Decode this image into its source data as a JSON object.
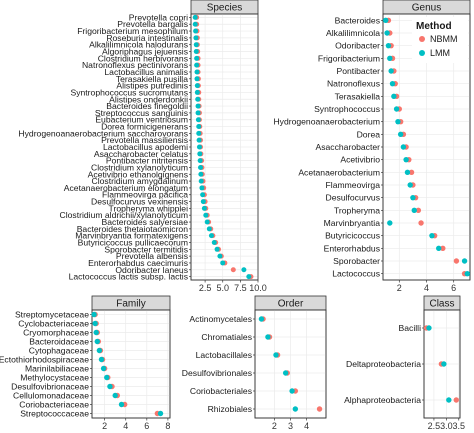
{
  "colors": {
    "NBMM": "#F8766D",
    "LMM": "#00BFC4"
  },
  "legend": {
    "title": "Method",
    "items": [
      "NBMM",
      "LMM"
    ],
    "placement": "top-right"
  },
  "chart_data": [
    {
      "type": "scatter",
      "title": "Species",
      "xlim": [
        0.5,
        10
      ],
      "xticks": [
        2.5,
        5.0,
        7.5,
        10.0
      ],
      "xtick_labels": [
        "2.5",
        "5.0",
        "7.5",
        "10.0"
      ],
      "categories": [
        "Prevotella copri",
        "Prevotella bargalis",
        "Frigoribacterium mesophilum",
        "Roseburia intestinalis",
        "Alkalilimnicola halodurans",
        "Algoriphagus jejuensis",
        "Clostridium herbivorans",
        "Natronoflexus pectinivorans",
        "Lactobacillus animalis",
        "Terasakiella pusilla",
        "Alistipes putredinis",
        "Syntrophococcus sucromutans",
        "Alistipes onderdonkii",
        "Bacteroides finegoldii",
        "Streptococcus sanguinis",
        "Eubacterium ventriosum",
        "Dorea formicigenerans",
        "Hydrogenoanaerobacterium saccharovorans",
        "Prevotella massiliensis",
        "Lactobacillus apodemi",
        "Asaccharobacter celatus",
        "Pontibacter nitritensis",
        "Clostridium xylanolyticum",
        "Acetivibrio ethanolgignens",
        "Clostridium amygdalinum",
        "Acetanaerobacterium elongatum",
        "Flammeovirga pacifica",
        "Desulfocurvus vexinensis",
        "Tropheryma whipplei",
        "Clostridium aldrichii/xylanolyticum",
        "Bacteroides salyersiae",
        "Bacteroides thetaiotaomicron",
        "Marvinbryantia formatexigens",
        "Butyricicoccus pullicaecorum",
        "Sporobacter termitidis",
        "Prevotella albensis",
        "Enterorhabdus caecimuris",
        "Odoribacter laneus",
        "Lactococcus lactis subsp. lactis"
      ],
      "series": [
        {
          "name": "NBMM",
          "values": [
            1.3,
            1.3,
            1.35,
            1.4,
            1.4,
            1.45,
            1.5,
            1.5,
            1.5,
            1.55,
            1.55,
            1.6,
            1.6,
            1.65,
            1.7,
            1.7,
            1.75,
            1.8,
            1.85,
            1.85,
            1.9,
            2.0,
            2.05,
            2.1,
            2.2,
            2.3,
            2.4,
            2.5,
            2.6,
            2.8,
            3.0,
            3.3,
            3.6,
            4.0,
            4.4,
            4.8,
            5.3,
            6.5,
            9.0
          ]
        },
        {
          "name": "LMM",
          "values": [
            1.1,
            1.1,
            1.15,
            1.2,
            1.25,
            1.25,
            1.3,
            1.3,
            1.35,
            1.35,
            1.4,
            1.4,
            1.45,
            1.5,
            1.5,
            1.55,
            1.6,
            1.6,
            1.65,
            1.7,
            1.75,
            1.8,
            1.85,
            1.9,
            1.95,
            2.05,
            2.15,
            2.25,
            2.4,
            2.6,
            2.8,
            3.1,
            3.4,
            3.8,
            4.2,
            4.6,
            5.0,
            8.0,
            8.7
          ]
        }
      ]
    },
    {
      "type": "scatter",
      "title": "Genus",
      "xlim": [
        0.8,
        7.2
      ],
      "xticks": [
        2,
        4,
        6
      ],
      "xtick_labels": [
        "2",
        "4",
        "6"
      ],
      "categories": [
        "Bacteroides",
        "Alkalilimnicola",
        "Odoribacter",
        "Frigoribacterium",
        "Pontibacter",
        "Natronoflexus",
        "Terasakiella",
        "Syntrophococcus",
        "Hydrogenoanaerobacterium",
        "Dorea",
        "Asaccharobacter",
        "Acetivibrio",
        "Acetanaerobacterium",
        "Flammeovirga",
        "Desulfocurvus",
        "Tropheryma",
        "Marvinbryantia",
        "Butyricicoccus",
        "Enterorhabdus",
        "Sporobacter",
        "Lactococcus"
      ],
      "series": [
        {
          "name": "NBMM",
          "values": [
            1.2,
            1.3,
            1.4,
            1.5,
            1.6,
            1.7,
            1.8,
            2.0,
            2.1,
            2.3,
            2.5,
            2.7,
            2.9,
            3.0,
            3.2,
            3.4,
            3.6,
            4.6,
            5.2,
            6.2,
            6.8
          ]
        },
        {
          "name": "LMM",
          "values": [
            1.0,
            1.1,
            1.2,
            1.3,
            1.4,
            1.5,
            1.6,
            1.8,
            1.9,
            2.1,
            2.3,
            2.5,
            2.6,
            2.8,
            3.0,
            3.1,
            1.3,
            4.4,
            4.9,
            6.8,
            7.0
          ]
        }
      ]
    },
    {
      "type": "scatter",
      "title": "Family",
      "xlim": [
        0.8,
        8.2
      ],
      "xticks": [
        2,
        4,
        6,
        8
      ],
      "xtick_labels": [
        "2",
        "4",
        "6",
        "8"
      ],
      "categories": [
        "Streptomycetaceae",
        "Cyclobacteriaceae",
        "Cryomorphaceae",
        "Bacteroidaceae",
        "Cytophagaceae",
        "Ectothiorhodospiraceae",
        "Marinilabiliaceae",
        "Methylocystaceae",
        "Desulfovibrionaceae",
        "Cellulomonadaceae",
        "Coriobacteriaceae",
        "Streptococcaceae"
      ],
      "series": [
        {
          "name": "NBMM",
          "values": [
            1.1,
            1.2,
            1.3,
            1.4,
            1.6,
            1.8,
            2.0,
            2.3,
            2.7,
            3.2,
            3.9,
            7.0
          ]
        },
        {
          "name": "LMM",
          "values": [
            1.0,
            1.1,
            1.2,
            1.3,
            1.5,
            1.7,
            1.9,
            2.2,
            2.5,
            3.0,
            3.6,
            7.3
          ]
        }
      ]
    },
    {
      "type": "scatter",
      "title": "Order",
      "xlim": [
        0.8,
        5.2
      ],
      "xticks": [
        2,
        3,
        4
      ],
      "xtick_labels": [
        "2",
        "3",
        "4"
      ],
      "categories": [
        "Actinomycetales",
        "Chromatiales",
        "Lactobacillales",
        "Desulfovibrionales",
        "Coriobacteriales",
        "Rhizobiales"
      ],
      "series": [
        {
          "name": "NBMM",
          "values": [
            1.3,
            1.7,
            2.2,
            2.8,
            3.3,
            4.8
          ]
        },
        {
          "name": "LMM",
          "values": [
            1.2,
            1.6,
            2.1,
            2.7,
            3.1,
            3.3
          ]
        }
      ]
    },
    {
      "type": "scatter",
      "title": "Class",
      "xlim": [
        2.1,
        3.55
      ],
      "xticks": [
        2.5,
        3.0,
        3.5
      ],
      "xtick_labels": [
        "2.5",
        "3.0",
        "3.5"
      ],
      "categories": [
        "Bacilli",
        "Deltaproteobacteria",
        "Alphaproteobacteria"
      ],
      "series": [
        {
          "name": "NBMM",
          "values": [
            2.2,
            2.8,
            3.4
          ]
        },
        {
          "name": "LMM",
          "values": [
            2.3,
            2.9,
            3.1
          ]
        }
      ]
    }
  ]
}
